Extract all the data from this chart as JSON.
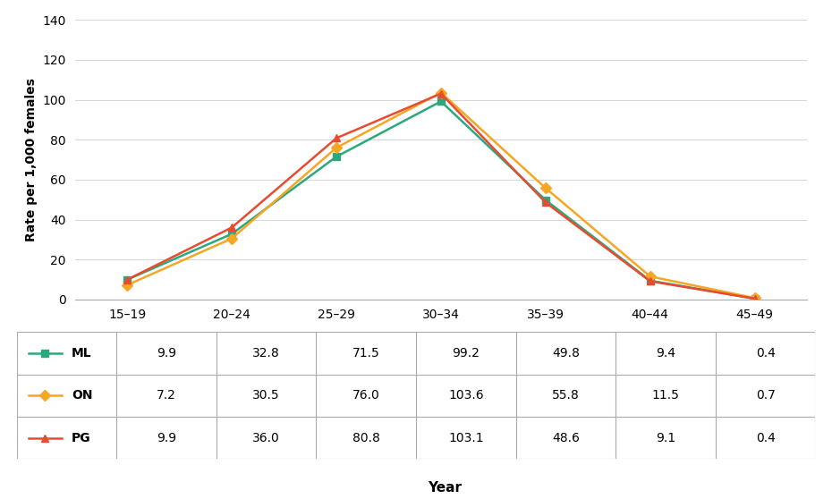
{
  "categories": [
    "15–19",
    "20–24",
    "25–29",
    "30–34",
    "35–39",
    "40–44",
    "45–49"
  ],
  "series": {
    "ML": [
      9.9,
      32.8,
      71.5,
      99.2,
      49.8,
      9.4,
      0.4
    ],
    "ON": [
      7.2,
      30.5,
      76.0,
      103.6,
      55.8,
      11.5,
      0.7
    ],
    "PG": [
      9.9,
      36.0,
      80.8,
      103.1,
      48.6,
      9.1,
      0.4
    ]
  },
  "colors": {
    "ML": "#2ca87f",
    "ON": "#f5a623",
    "PG": "#e84c30"
  },
  "markers": {
    "ML": "s",
    "ON": "D",
    "PG": "^"
  },
  "ylabel": "Rate per 1,000 females",
  "xlabel": "Year",
  "ylim": [
    0,
    140
  ],
  "yticks": [
    0,
    20,
    40,
    60,
    80,
    100,
    120,
    140
  ],
  "background_color": "#ffffff",
  "grid_color": "#cccccc",
  "series_names": [
    "ML",
    "ON",
    "PG"
  ],
  "table_data": {
    "ML": [
      "9.9",
      "32.8",
      "71.5",
      "99.2",
      "49.8",
      "9.4",
      "0.4"
    ],
    "ON": [
      "7.2",
      "30.5",
      "76.0",
      "103.6",
      "55.8",
      "11.5",
      "0.7"
    ],
    "PG": [
      "9.9",
      "36.0",
      "80.8",
      "103.1",
      "48.6",
      "9.1",
      "0.4"
    ]
  }
}
